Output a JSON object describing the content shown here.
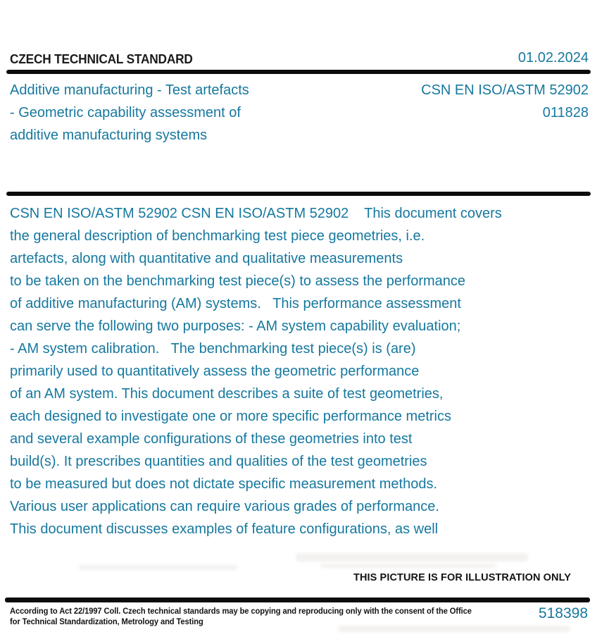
{
  "header": {
    "title": "CZECH TECHNICAL STANDARD",
    "date": "01.02.2024"
  },
  "standard": {
    "title_lines": [
      "Additive manufacturing - Test artefacts",
      "- Geometric capability assessment of",
      "additive manufacturing systems"
    ],
    "designation": "CSN EN ISO/ASTM 52902",
    "class_number": "011828"
  },
  "abstract": {
    "lines": [
      "CSN EN ISO/ASTM 52902 CSN EN ISO/ASTM 52902    This document covers",
      "the general description of benchmarking test piece geometries, i.e.",
      "artefacts, along with quantitative and qualitative measurements",
      "to be taken on the benchmarking test piece(s) to assess the performance",
      "of additive manufacturing (AM) systems.   This performance assessment",
      "can serve the following two purposes: - AM system capability evaluation;",
      "- AM system calibration.   The benchmarking test piece(s) is (are)",
      "primarily used to quantitatively assess the geometric performance",
      "of an AM system. This document describes a suite of test geometries,",
      "each designed to investigate one or more specific performance metrics",
      "and several example configurations of these geometries into test",
      "build(s). It prescribes quantities and qualities of the test geometries",
      "to be measured but does not dictate specific measurement methods.",
      "Various user applications can require various grades of performance.",
      "This document discusses examples of feature configurations, as well"
    ]
  },
  "illustration_note": "THIS PICTURE IS FOR ILLUSTRATION ONLY",
  "footer": {
    "notice_lines": [
      "According to Act 22/1997 Coll. Czech technical standards may be copying and reproducing only with the consent of the Office",
      "for Technical Standardization, Metrology and Testing"
    ],
    "order_number": "518398"
  },
  "colors": {
    "accent": "#16789f",
    "text": "#141414"
  }
}
